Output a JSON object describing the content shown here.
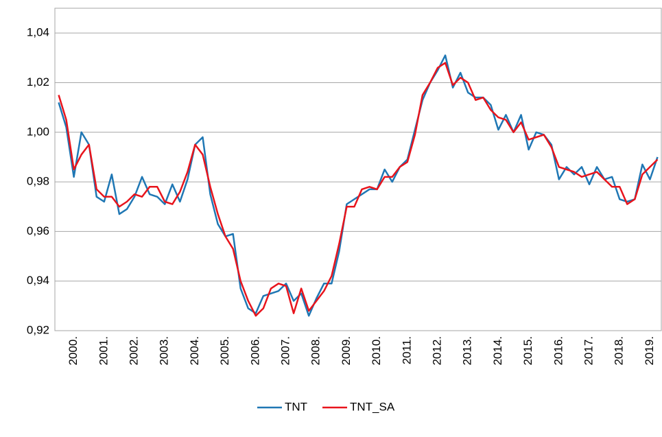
{
  "chart_data": {
    "type": "line",
    "categories": [
      null,
      null,
      "2000.",
      null,
      null,
      null,
      "2001.",
      null,
      null,
      null,
      "2002.",
      null,
      null,
      null,
      "2003.",
      null,
      null,
      null,
      "2004.",
      null,
      null,
      null,
      "2005.",
      null,
      null,
      null,
      "2006.",
      null,
      null,
      null,
      "2007.",
      null,
      null,
      null,
      "2008.",
      null,
      null,
      null,
      "2009.",
      null,
      null,
      null,
      "2010.",
      null,
      null,
      null,
      "2011.",
      null,
      null,
      null,
      "2012.",
      null,
      null,
      null,
      "2013.",
      null,
      null,
      null,
      "2014.",
      null,
      null,
      null,
      "2015.",
      null,
      null,
      null,
      "2016.",
      null,
      null,
      null,
      "2017.",
      null,
      null,
      null,
      "2018.",
      null,
      null,
      null,
      "2019.",
      null
    ],
    "series": [
      {
        "name": "TNT",
        "color": "#1f77b4",
        "values": [
          1.012,
          1.002,
          0.982,
          1.0,
          0.995,
          0.974,
          0.972,
          0.983,
          0.967,
          0.969,
          0.974,
          0.982,
          0.975,
          0.974,
          0.971,
          0.979,
          0.972,
          0.981,
          0.995,
          0.998,
          0.975,
          0.963,
          0.958,
          0.959,
          0.937,
          0.929,
          0.927,
          0.934,
          0.935,
          0.936,
          0.939,
          0.932,
          0.935,
          0.926,
          0.933,
          0.939,
          0.939,
          0.952,
          0.971,
          0.973,
          0.975,
          0.977,
          0.977,
          0.985,
          0.98,
          0.986,
          0.989,
          1.001,
          1.013,
          1.02,
          1.025,
          1.031,
          1.018,
          1.024,
          1.016,
          1.014,
          1.014,
          1.011,
          1.001,
          1.007,
          1.0,
          1.007,
          0.993,
          1.0,
          0.999,
          0.995,
          0.981,
          0.986,
          0.983,
          0.986,
          0.979,
          0.986,
          0.981,
          0.982,
          0.973,
          0.972,
          0.973,
          0.987,
          0.981,
          0.99
        ]
      },
      {
        "name": "TNT_SA",
        "color": "#e8141c",
        "values": [
          1.015,
          1.005,
          0.985,
          0.991,
          0.995,
          0.977,
          0.974,
          0.974,
          0.97,
          0.972,
          0.975,
          0.974,
          0.978,
          0.978,
          0.972,
          0.971,
          0.976,
          0.984,
          0.995,
          0.991,
          0.978,
          0.967,
          0.958,
          0.953,
          0.94,
          0.932,
          0.926,
          0.929,
          0.937,
          0.939,
          0.938,
          0.927,
          0.937,
          0.928,
          0.932,
          0.936,
          0.942,
          0.955,
          0.97,
          0.97,
          0.977,
          0.978,
          0.977,
          0.982,
          0.982,
          0.986,
          0.988,
          0.999,
          1.015,
          1.02,
          1.026,
          1.028,
          1.019,
          1.022,
          1.02,
          1.013,
          1.014,
          1.009,
          1.006,
          1.005,
          1.0,
          1.004,
          0.997,
          0.998,
          0.999,
          0.994,
          0.986,
          0.985,
          0.984,
          0.982,
          0.983,
          0.984,
          0.981,
          0.978,
          0.978,
          0.971,
          0.973,
          0.983,
          0.986,
          0.989
        ]
      }
    ],
    "ylim": [
      0.92,
      1.05
    ],
    "yticks": [
      {
        "value": 0.92,
        "label": "0,92"
      },
      {
        "value": 0.94,
        "label": "0,94"
      },
      {
        "value": 0.96,
        "label": "0,96"
      },
      {
        "value": 0.98,
        "label": "0,98"
      },
      {
        "value": 1.0,
        "label": "1,00"
      },
      {
        "value": 1.02,
        "label": "1,02"
      },
      {
        "value": 1.04,
        "label": "1,04"
      }
    ],
    "grid": true,
    "legend": "bottom"
  }
}
